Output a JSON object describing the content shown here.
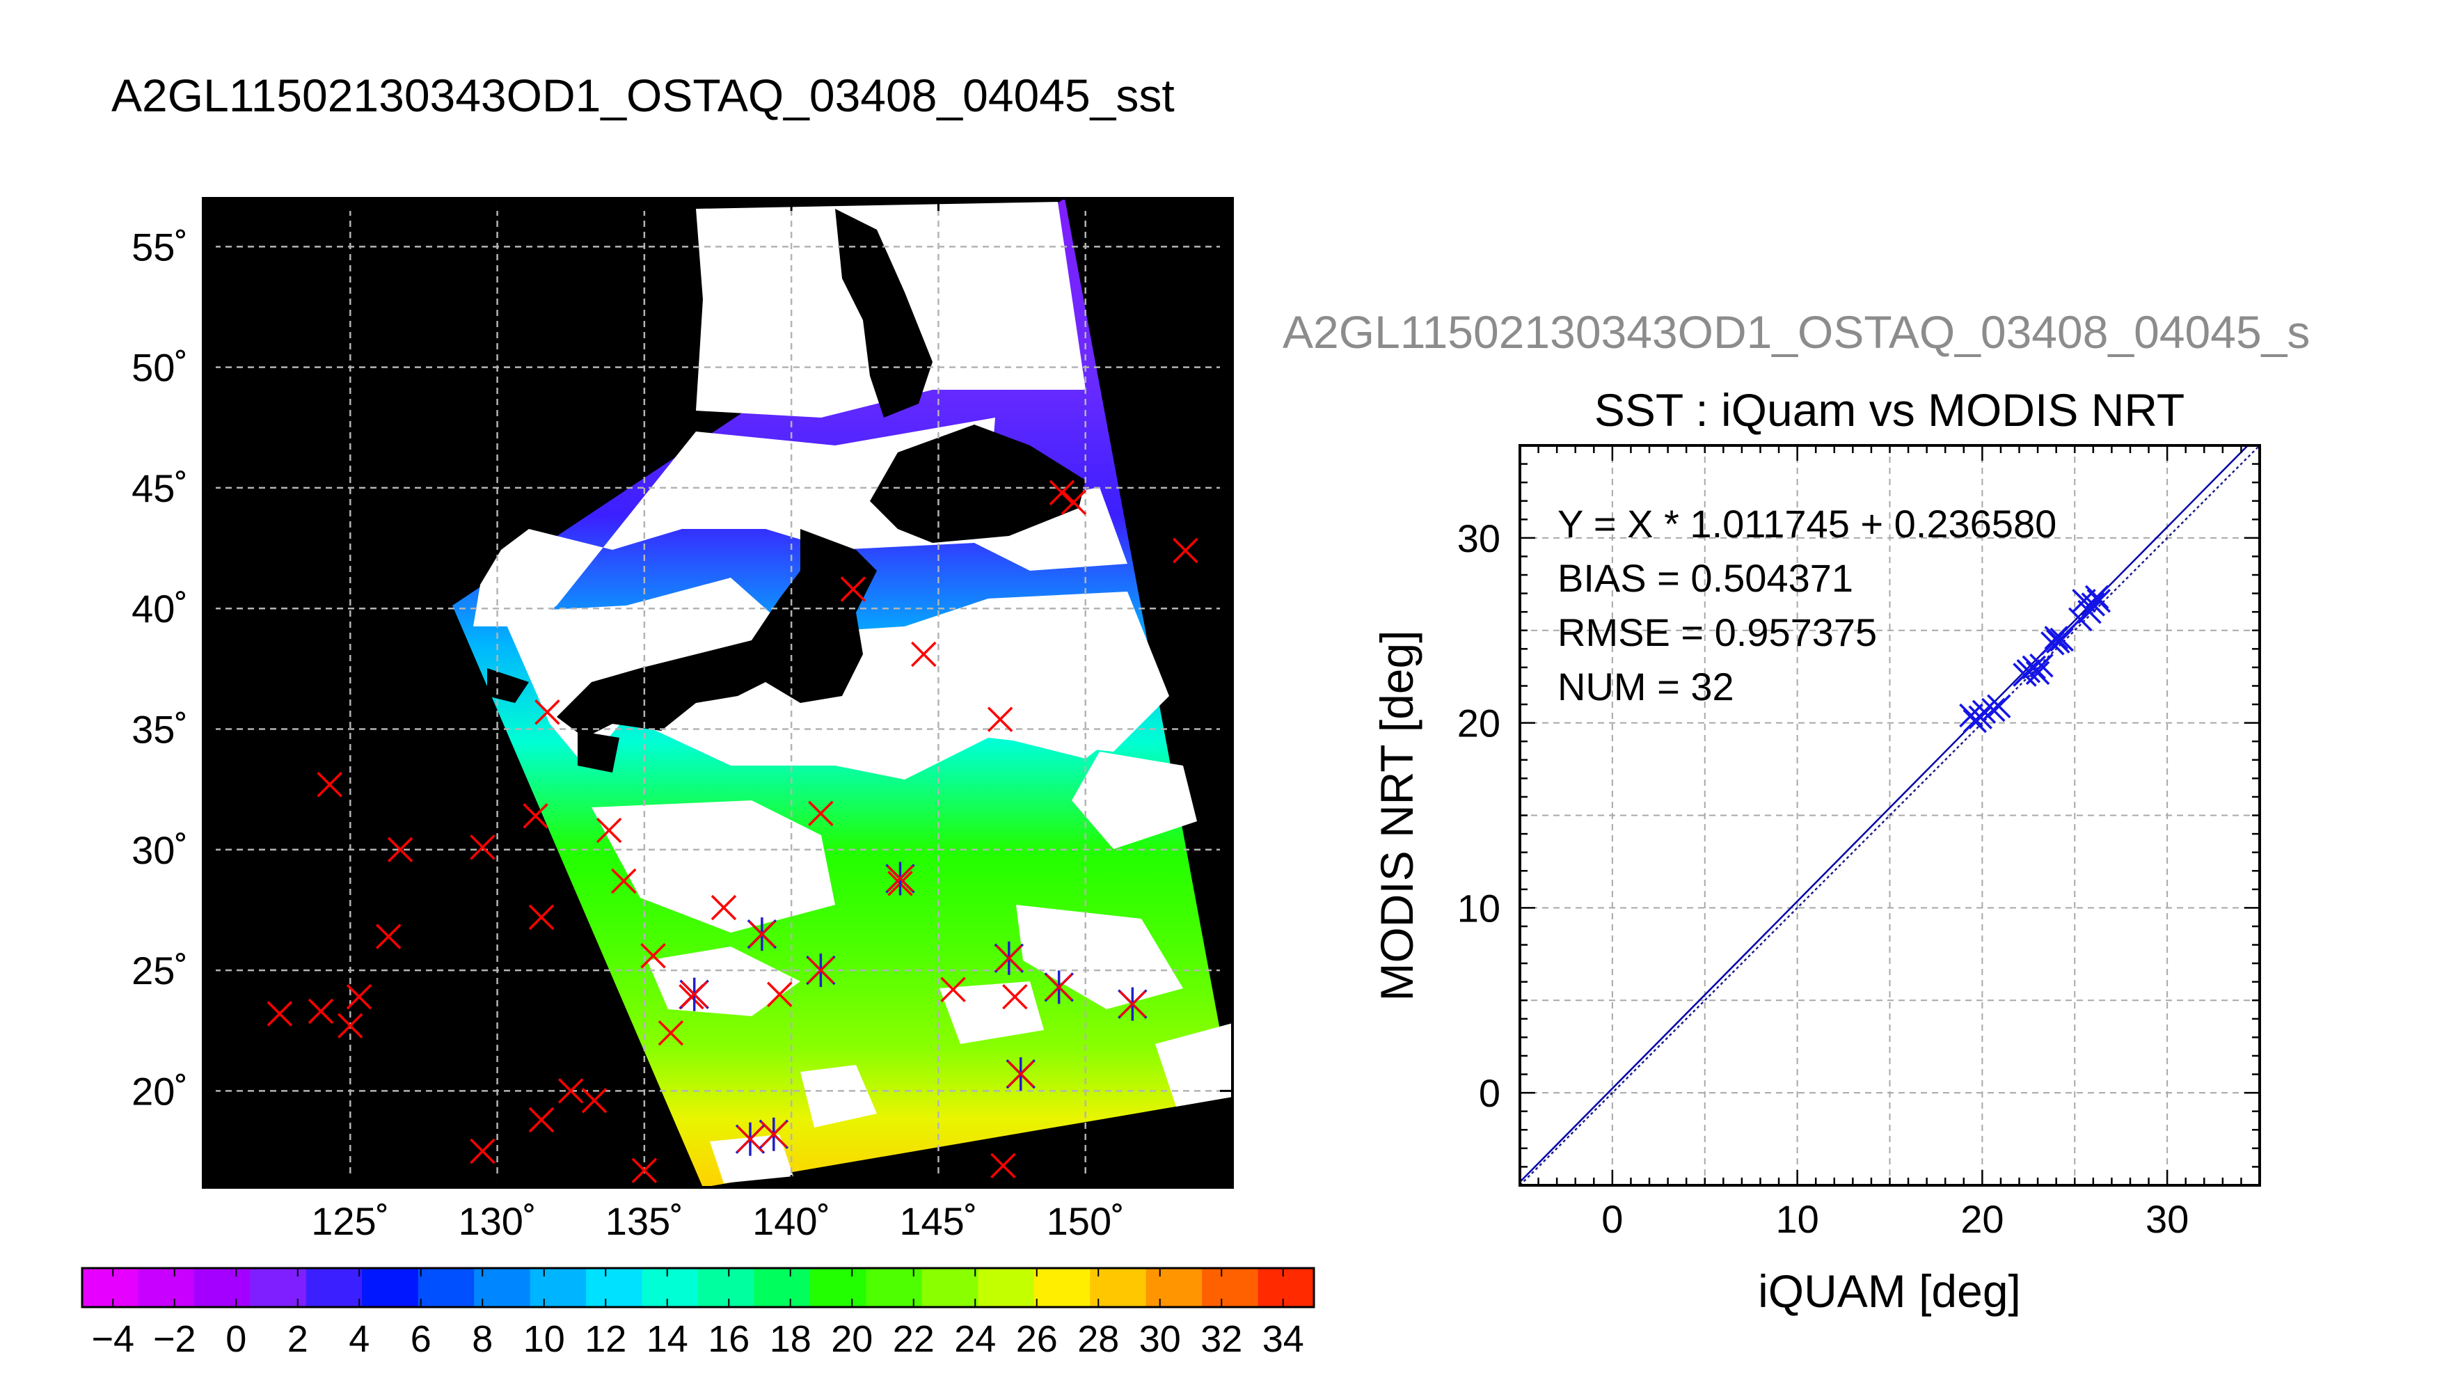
{
  "page_title": "A2GL11502130343OD1_OSTAQ_03408_04045_sst",
  "secondary_title": "A2GL11502130343OD1_OSTAQ_03408_04045_s",
  "chart_data": [
    {
      "type": "heatmap",
      "description_free": "",
      "grid": true,
      "xlim": [
        120,
        155
      ],
      "ylim": [
        16,
        57
      ],
      "x_ticks": [
        125,
        130,
        135,
        140,
        145,
        150
      ],
      "y_ticks": [
        20,
        25,
        30,
        35,
        40,
        45,
        50,
        55
      ],
      "x_tick_labels": [
        "125˚",
        "130˚",
        "135˚",
        "140˚",
        "145˚",
        "150˚"
      ],
      "y_tick_labels": [
        "20˚",
        "25˚",
        "30˚",
        "35˚",
        "40˚",
        "45˚",
        "50˚",
        "55˚"
      ],
      "colorbar": {
        "min": -5,
        "max": 35,
        "tick_labels": [
          "−4",
          "−2",
          "0",
          "2",
          "4",
          "6",
          "8",
          "10",
          "12",
          "14",
          "16",
          "18",
          "20",
          "22",
          "24",
          "26",
          "28",
          "30",
          "32",
          "34"
        ],
        "colors": [
          "#e600ff",
          "#c800ff",
          "#a300ff",
          "#7f1fff",
          "#3c1fff",
          "#0017ff",
          "#0050ff",
          "#0087ff",
          "#00b4ff",
          "#00e0ff",
          "#00ffd4",
          "#00ff9e",
          "#00ff5c",
          "#21ff00",
          "#4dff00",
          "#8aff00",
          "#c4ff00",
          "#ffee00",
          "#ffc700",
          "#ff9500",
          "#ff6000",
          "#ff2a00"
        ]
      },
      "colors": {
        "background": "#000000",
        "cloud": "#ffffff",
        "all_match": "#ff0000",
        "matched": "#1f1fcc"
      },
      "buoys_all": [
        {
          "lon": 122.6,
          "lat": 23.2
        },
        {
          "lon": 124.0,
          "lat": 23.3
        },
        {
          "lon": 125.0,
          "lat": 22.7
        },
        {
          "lon": 125.3,
          "lat": 23.9
        },
        {
          "lon": 124.3,
          "lat": 32.7
        },
        {
          "lon": 126.3,
          "lat": 26.4
        },
        {
          "lon": 126.7,
          "lat": 30.0
        },
        {
          "lon": 129.5,
          "lat": 30.1
        },
        {
          "lon": 129.5,
          "lat": 17.5
        },
        {
          "lon": 131.5,
          "lat": 18.8
        },
        {
          "lon": 131.3,
          "lat": 31.4
        },
        {
          "lon": 131.5,
          "lat": 27.2
        },
        {
          "lon": 131.7,
          "lat": 35.7
        },
        {
          "lon": 132.5,
          "lat": 20.0
        },
        {
          "lon": 133.3,
          "lat": 19.6
        },
        {
          "lon": 133.8,
          "lat": 30.8
        },
        {
          "lon": 134.3,
          "lat": 28.7
        },
        {
          "lon": 135.0,
          "lat": 16.7
        },
        {
          "lon": 135.3,
          "lat": 25.6
        },
        {
          "lon": 135.9,
          "lat": 22.4
        },
        {
          "lon": 136.6,
          "lat": 23.9
        },
        {
          "lon": 137.7,
          "lat": 27.6
        },
        {
          "lon": 139.0,
          "lat": 26.5
        },
        {
          "lon": 139.6,
          "lat": 24.0
        },
        {
          "lon": 141.0,
          "lat": 31.5
        },
        {
          "lon": 142.1,
          "lat": 40.8
        },
        {
          "lon": 143.7,
          "lat": 28.6
        },
        {
          "lon": 144.5,
          "lat": 38.1
        },
        {
          "lon": 145.5,
          "lat": 24.2
        },
        {
          "lon": 147.1,
          "lat": 35.4
        },
        {
          "lon": 147.2,
          "lat": 16.9
        },
        {
          "lon": 147.6,
          "lat": 23.9
        },
        {
          "lon": 149.2,
          "lat": 44.8
        },
        {
          "lon": 149.6,
          "lat": 44.4
        },
        {
          "lon": 153.4,
          "lat": 42.4
        }
      ],
      "buoys_matched": [
        {
          "lon": 136.7,
          "lat": 24.0
        },
        {
          "lon": 139.0,
          "lat": 26.5
        },
        {
          "lon": 141.0,
          "lat": 25.0
        },
        {
          "lon": 143.7,
          "lat": 28.8
        },
        {
          "lon": 147.4,
          "lat": 25.5
        },
        {
          "lon": 147.8,
          "lat": 20.7
        },
        {
          "lon": 149.1,
          "lat": 24.3
        },
        {
          "lon": 151.6,
          "lat": 23.6
        },
        {
          "lon": 138.6,
          "lat": 18.0
        },
        {
          "lon": 139.4,
          "lat": 18.2
        }
      ]
    },
    {
      "type": "scatter",
      "title": "SST : iQuam vs MODIS NRT",
      "xlabel": "iQUAM [deg]",
      "ylabel": "MODIS NRT [deg]",
      "xlim": [
        -5,
        35
      ],
      "ylim": [
        -5,
        35
      ],
      "x_ticks": [
        0,
        10,
        20,
        30
      ],
      "y_ticks": [
        0,
        10,
        20,
        30
      ],
      "grid": true,
      "fit": {
        "slope": 1.011745,
        "intercept": 0.23658
      },
      "annotations": [
        "Y = X * 1.011745 + 0.236580",
        "BIAS = 0.504371",
        "RMSE = 0.957375",
        "NUM = 32"
      ],
      "points": [
        {
          "x": 19.4,
          "y": 20.4
        },
        {
          "x": 19.6,
          "y": 20.1
        },
        {
          "x": 19.9,
          "y": 20.3
        },
        {
          "x": 20.1,
          "y": 20.6
        },
        {
          "x": 20.6,
          "y": 20.7
        },
        {
          "x": 20.9,
          "y": 20.9
        },
        {
          "x": 22.3,
          "y": 22.6
        },
        {
          "x": 22.5,
          "y": 22.8
        },
        {
          "x": 22.8,
          "y": 23.0
        },
        {
          "x": 23.0,
          "y": 22.7
        },
        {
          "x": 23.2,
          "y": 23.1
        },
        {
          "x": 23.8,
          "y": 24.3
        },
        {
          "x": 24.0,
          "y": 24.6
        },
        {
          "x": 24.1,
          "y": 24.4
        },
        {
          "x": 24.3,
          "y": 24.5
        },
        {
          "x": 25.3,
          "y": 25.6
        },
        {
          "x": 25.5,
          "y": 26.6
        },
        {
          "x": 25.8,
          "y": 26.0
        },
        {
          "x": 26.0,
          "y": 26.4
        },
        {
          "x": 26.2,
          "y": 26.8
        },
        {
          "x": 26.3,
          "y": 26.6
        }
      ],
      "colors": {
        "points": "#1414e6",
        "fit_line": "#0000aa",
        "identity": "#1e1e8c"
      }
    }
  ]
}
